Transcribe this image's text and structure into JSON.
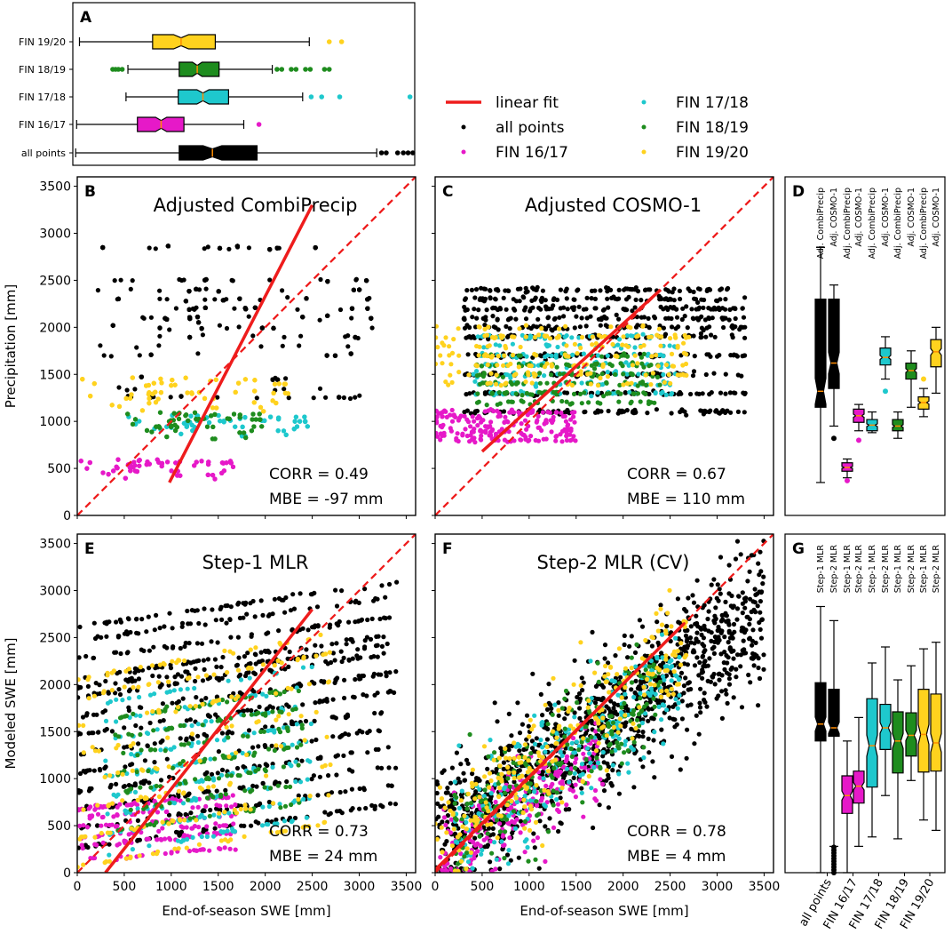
{
  "colors": {
    "all": "#000000",
    "fin1617": "#e619c8",
    "fin1718": "#1ec8cd",
    "fin1819": "#1e8c1e",
    "fin1920": "#ffd21e",
    "fit": "#ee1c1c",
    "median": "#ff8c00"
  },
  "legend": {
    "items": [
      {
        "key": "fit",
        "label": "linear fit",
        "kind": "line"
      },
      {
        "key": "all",
        "label": "all points",
        "kind": "dot"
      },
      {
        "key": "fin1617",
        "label": "FIN 16/17",
        "kind": "dot"
      },
      {
        "key": "fin1718",
        "label": "FIN 17/18",
        "kind": "dot"
      },
      {
        "key": "fin1819",
        "label": "FIN 18/19",
        "kind": "dot"
      },
      {
        "key": "fin1920",
        "label": "FIN 19/20",
        "kind": "dot"
      }
    ]
  },
  "chart_data": [
    {
      "panel": "A",
      "type": "boxplot",
      "orientation": "horizontal",
      "xlim": [
        0,
        3600
      ],
      "categories": [
        "all points",
        "FIN 16/17",
        "FIN 17/18",
        "FIN 18/19",
        "FIN 19/20"
      ],
      "series": [
        {
          "name": "all points",
          "color": "all",
          "whisker_low": 30,
          "q1": 1120,
          "median": 1470,
          "q3": 1940,
          "whisker_high": 3200,
          "outliers": [
            3250,
            3300,
            3420,
            3480,
            3530,
            3580
          ]
        },
        {
          "name": "FIN 16/17",
          "color": "fin1617",
          "whisker_low": 40,
          "q1": 680,
          "median": 930,
          "q3": 1170,
          "whisker_high": 1800,
          "outliers": [
            1960
          ]
        },
        {
          "name": "FIN 17/18",
          "color": "fin1718",
          "whisker_low": 560,
          "q1": 1110,
          "median": 1370,
          "q3": 1640,
          "whisker_high": 2420,
          "outliers": [
            2510,
            2620,
            2810,
            3550
          ]
        },
        {
          "name": "FIN 18/19",
          "color": "fin1819",
          "whisker_low": 580,
          "q1": 1120,
          "median": 1310,
          "q3": 1540,
          "whisker_high": 2100,
          "outliers": [
            420,
            450,
            480,
            520,
            2150,
            2200,
            2300,
            2350,
            2450,
            2500,
            2650,
            2700
          ]
        },
        {
          "name": "FIN 19/20",
          "color": "fin1920",
          "whisker_low": 70,
          "q1": 840,
          "median": 1140,
          "q3": 1500,
          "whisker_high": 2490,
          "outliers": [
            2700,
            2830
          ]
        }
      ]
    },
    {
      "panel": "B",
      "type": "scatter",
      "title": "Adjusted CombiPrecip",
      "xlabel": "",
      "ylabel": "Precipitation [mm]",
      "xlim": [
        0,
        3600
      ],
      "ylim": [
        0,
        3600
      ],
      "yticks": [
        "0",
        "500",
        "1000",
        "1500",
        "2000",
        "2500",
        "3000",
        "3500"
      ],
      "fit_line": {
        "x": [
          980,
          2500
        ],
        "y": [
          350,
          3300
        ]
      },
      "stats": {
        "corr": "CORR = 0.49",
        "mbe": "MBE = -97 mm"
      },
      "groups": [
        {
          "color": "all",
          "x_range": [
            200,
            3200
          ],
          "y_bands": [
            1250,
            1350,
            1450,
            1700,
            1800,
            1900,
            2000,
            2100,
            2200,
            2300,
            2400,
            2500,
            2850
          ],
          "n": 700
        },
        {
          "color": "fin1617",
          "x_range": [
            0,
            1700
          ],
          "y_bands": [
            380,
            430,
            480,
            520,
            560,
            580
          ],
          "n": 200
        },
        {
          "color": "fin1718",
          "x_range": [
            500,
            2500
          ],
          "y_bands": [
            850,
            900,
            950,
            1000,
            1050
          ],
          "n": 200
        },
        {
          "color": "fin1819",
          "x_range": [
            500,
            2000
          ],
          "y_bands": [
            820,
            880,
            950,
            1020,
            1080
          ],
          "n": 180
        },
        {
          "color": "fin1920",
          "x_range": [
            0,
            2300
          ],
          "y_bands": [
            1100,
            1150,
            1200,
            1250,
            1300,
            1400,
            1450
          ],
          "n": 200
        }
      ]
    },
    {
      "panel": "C",
      "type": "scatter",
      "title": "Adjusted COSMO-1",
      "xlabel": "",
      "ylabel": "",
      "xlim": [
        0,
        3600
      ],
      "ylim": [
        0,
        3600
      ],
      "fit_line": {
        "x": [
          500,
          2400
        ],
        "y": [
          680,
          2400
        ]
      },
      "stats": {
        "corr": "CORR = 0.67",
        "mbe": "MBE = 110 mm"
      },
      "groups": [
        {
          "color": "all",
          "x_range": [
            300,
            3300
          ],
          "y_bands": [
            1100,
            1300,
            1500,
            1700,
            1900,
            2000,
            2100,
            2200,
            2300,
            2400
          ],
          "n": 700
        },
        {
          "color": "fin1617",
          "x_range": [
            0,
            1500
          ],
          "y_bands": [
            800,
            850,
            900,
            950,
            1000,
            1050,
            1100
          ],
          "n": 200
        },
        {
          "color": "fin1718",
          "x_range": [
            400,
            2600
          ],
          "y_bands": [
            1300,
            1400,
            1500,
            1600,
            1700,
            1800,
            1900
          ],
          "n": 220
        },
        {
          "color": "fin1819",
          "x_range": [
            400,
            2400
          ],
          "y_bands": [
            1200,
            1300,
            1400,
            1500,
            1600,
            1700
          ],
          "n": 180
        },
        {
          "color": "fin1920",
          "x_range": [
            0,
            2700
          ],
          "y_bands": [
            1400,
            1500,
            1600,
            1700,
            1800,
            1900,
            2000
          ],
          "n": 200
        }
      ]
    },
    {
      "panel": "D",
      "type": "boxplot",
      "orientation": "vertical",
      "ylim": [
        0,
        3600
      ],
      "tick_labels": [
        "Adj. CombiPrecip",
        "Adj. COSMO-1",
        "Adj. CombiPrecip",
        "Adj. COSMO-1",
        "Adj. CombiPrecip",
        "Adj. COSMO-1",
        "Adj. CombiPrecip",
        "Adj. COSMO-1",
        "Adj. CombiPrecip",
        "Adj. COSMO-1"
      ],
      "series": [
        {
          "color": "all",
          "whisker_low": 350,
          "q1": 1150,
          "median": 1320,
          "q3": 2300,
          "whisker_high": 2850,
          "outliers": []
        },
        {
          "color": "all",
          "whisker_low": 950,
          "q1": 1350,
          "median": 1620,
          "q3": 2300,
          "whisker_high": 2450,
          "outliers": [
            820
          ]
        },
        {
          "color": "fin1617",
          "whisker_low": 400,
          "q1": 470,
          "median": 510,
          "q3": 560,
          "whisker_high": 600,
          "outliers": [
            370
          ]
        },
        {
          "color": "fin1617",
          "whisker_low": 900,
          "q1": 990,
          "median": 1060,
          "q3": 1130,
          "whisker_high": 1180,
          "outliers": [
            800
          ]
        },
        {
          "color": "fin1718",
          "whisker_low": 880,
          "q1": 900,
          "median": 960,
          "q3": 1020,
          "whisker_high": 1100,
          "outliers": []
        },
        {
          "color": "fin1718",
          "whisker_low": 1450,
          "q1": 1600,
          "median": 1680,
          "q3": 1780,
          "whisker_high": 1900,
          "outliers": [
            1320
          ]
        },
        {
          "color": "fin1819",
          "whisker_low": 820,
          "q1": 900,
          "median": 950,
          "q3": 1020,
          "whisker_high": 1100,
          "outliers": []
        },
        {
          "color": "fin1819",
          "whisker_low": 1150,
          "q1": 1450,
          "median": 1540,
          "q3": 1620,
          "whisker_high": 1750,
          "outliers": []
        },
        {
          "color": "fin1920",
          "whisker_low": 1050,
          "q1": 1130,
          "median": 1200,
          "q3": 1260,
          "whisker_high": 1350,
          "outliers": [
            1450
          ]
        },
        {
          "color": "fin1920",
          "whisker_low": 1300,
          "q1": 1580,
          "median": 1740,
          "q3": 1870,
          "whisker_high": 2000,
          "outliers": []
        }
      ]
    },
    {
      "panel": "E",
      "type": "scatter",
      "title": "Step-1 MLR",
      "xlabel": "End-of-season SWE [mm]",
      "ylabel": "Modeled SWE [mm]",
      "xlim": [
        0,
        3600
      ],
      "ylim": [
        0,
        3600
      ],
      "xticks": [
        "0",
        "500",
        "1000",
        "1500",
        "2000",
        "2500",
        "3000",
        "3500"
      ],
      "yticks": [
        "0",
        "500",
        "1000",
        "1500",
        "2000",
        "2500",
        "3000",
        "3500"
      ],
      "fit_line": {
        "x": [
          300,
          2500
        ],
        "y": [
          0,
          2800
        ]
      },
      "stats": {
        "corr": "CORR = 0.73",
        "mbe": "MBE = 24 mm"
      },
      "groups": [
        {
          "color": "all",
          "x_range": [
            0,
            3400
          ],
          "y_bands": [
            500,
            700,
            900,
            1100,
            1300,
            1500,
            1700,
            1900,
            2100,
            2200,
            2300,
            2500,
            2700,
            2850
          ],
          "n": 800,
          "trend": 0.55
        },
        {
          "color": "fin1617",
          "x_range": [
            0,
            1700
          ],
          "y_bands": [
            200,
            350,
            450,
            550,
            650,
            750
          ],
          "n": 200,
          "trend": 0.35
        },
        {
          "color": "fin1718",
          "x_range": [
            300,
            2500
          ],
          "y_bands": [
            400,
            600,
            800,
            1000,
            1200,
            1400,
            1600,
            1800,
            2000
          ],
          "n": 250,
          "trend": 0.7
        },
        {
          "color": "fin1819",
          "x_range": [
            400,
            2400
          ],
          "y_bands": [
            600,
            800,
            1000,
            1200,
            1400,
            1600,
            1800
          ],
          "n": 200,
          "trend": 0.6
        },
        {
          "color": "fin1920",
          "x_range": [
            0,
            2700
          ],
          "y_bands": [
            300,
            600,
            900,
            1200,
            1500,
            1800,
            2100,
            2300
          ],
          "n": 220,
          "trend": 0.7
        }
      ]
    },
    {
      "panel": "F",
      "type": "scatter",
      "title": "Step-2 MLR (CV)",
      "xlabel": "End-of-season SWE [mm]",
      "ylabel": "",
      "xlim": [
        0,
        3600
      ],
      "ylim": [
        0,
        3600
      ],
      "xticks": [
        "0",
        "500",
        "1000",
        "1500",
        "2000",
        "2500",
        "3000",
        "3500"
      ],
      "fit_line": {
        "x": [
          0,
          2650
        ],
        "y": [
          30,
          2650
        ]
      },
      "stats": {
        "corr": "CORR = 0.78",
        "mbe": "MBE = 4 mm"
      },
      "groups": [
        {
          "color": "all",
          "x_range": [
            0,
            3500
          ],
          "n": 1100,
          "slope": 0.7,
          "intercept": 300,
          "spread": 380
        },
        {
          "color": "fin1617",
          "x_range": [
            50,
            1800
          ],
          "n": 220,
          "slope": 0.6,
          "intercept": 150,
          "spread": 250
        },
        {
          "color": "fin1718",
          "x_range": [
            200,
            2600
          ],
          "n": 260,
          "slope": 0.75,
          "intercept": 250,
          "spread": 280
        },
        {
          "color": "fin1819",
          "x_range": [
            200,
            2400
          ],
          "n": 200,
          "slope": 0.72,
          "intercept": 250,
          "spread": 280
        },
        {
          "color": "fin1920",
          "x_range": [
            0,
            2700
          ],
          "n": 240,
          "slope": 0.78,
          "intercept": 300,
          "spread": 300
        }
      ]
    },
    {
      "panel": "G",
      "type": "boxplot",
      "orientation": "vertical",
      "ylim": [
        0,
        3600
      ],
      "tick_labels": [
        "Step-1 MLR",
        "Step-2 MLR",
        "Step-1 MLR",
        "Step-2 MLR",
        "Step-1 MLR",
        "Step-2 MLR",
        "Step-1 MLR",
        "Step-2 MLR",
        "Step-1 MLR",
        "Step-2 MLR"
      ],
      "group_labels": [
        "all points",
        "FIN 16/17",
        "FIN 17/18",
        "FIN 18/19",
        "FIN 19/20"
      ],
      "series": [
        {
          "color": "all",
          "whisker_low": 0,
          "q1": 1400,
          "median": 1580,
          "q3": 2020,
          "whisker_high": 2830,
          "outliers": []
        },
        {
          "color": "all",
          "whisker_low": 280,
          "q1": 1450,
          "median": 1540,
          "q3": 1950,
          "whisker_high": 2680,
          "outliers": [
            0,
            30,
            60,
            90,
            120,
            150,
            180,
            210,
            240,
            270
          ]
        },
        {
          "color": "fin1617",
          "whisker_low": 0,
          "q1": 630,
          "median": 820,
          "q3": 1030,
          "whisker_high": 1400,
          "outliers": []
        },
        {
          "color": "fin1617",
          "whisker_low": 280,
          "q1": 740,
          "median": 920,
          "q3": 1080,
          "whisker_high": 1650,
          "outliers": []
        },
        {
          "color": "fin1718",
          "whisker_low": 380,
          "q1": 910,
          "median": 1350,
          "q3": 1850,
          "whisker_high": 2230,
          "outliers": []
        },
        {
          "color": "fin1718",
          "whisker_low": 820,
          "q1": 1310,
          "median": 1540,
          "q3": 1790,
          "whisker_high": 2400,
          "outliers": []
        },
        {
          "color": "fin1819",
          "whisker_low": 360,
          "q1": 1060,
          "median": 1400,
          "q3": 1710,
          "whisker_high": 2050,
          "outliers": []
        },
        {
          "color": "fin1819",
          "whisker_low": 980,
          "q1": 1240,
          "median": 1460,
          "q3": 1700,
          "whisker_high": 2200,
          "outliers": []
        },
        {
          "color": "fin1920",
          "whisker_low": 560,
          "q1": 1070,
          "median": 1470,
          "q3": 1950,
          "whisker_high": 2380,
          "outliers": []
        },
        {
          "color": "fin1920",
          "whisker_low": 450,
          "q1": 1080,
          "median": 1380,
          "q3": 1900,
          "whisker_high": 2450,
          "outliers": []
        }
      ]
    }
  ]
}
